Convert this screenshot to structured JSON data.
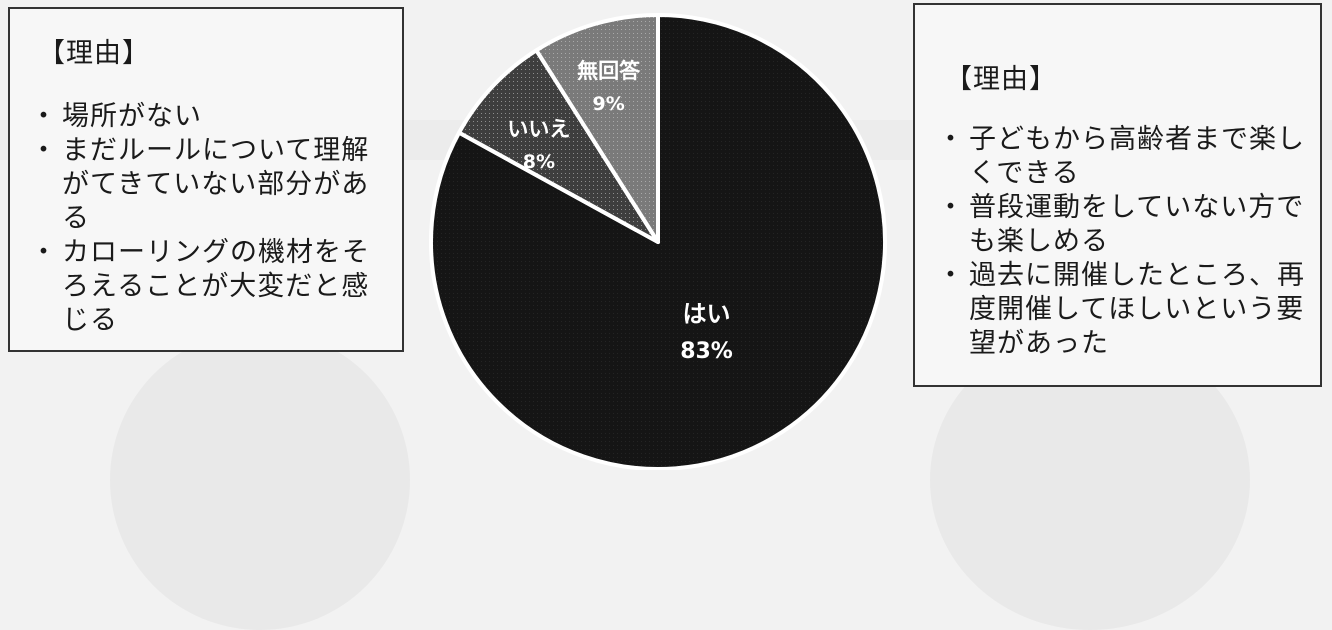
{
  "chart_data": {
    "type": "pie",
    "title": "",
    "slices": [
      {
        "label": "はい",
        "percent": 83,
        "percent_label": "83%",
        "color": "#151515"
      },
      {
        "label": "いいえ",
        "percent": 8,
        "percent_label": "8%",
        "color": "#3e3e3e"
      },
      {
        "label": "無回答",
        "percent": 9,
        "percent_label": "9%",
        "color": "#7a7a7a"
      }
    ]
  },
  "callouts": {
    "left": {
      "title": "【理由】",
      "items": [
        "場所がない",
        "まだルールについて理解がてきていない部分がある",
        "カローリングの機材をそろえることが大変だと感じる"
      ],
      "lines": [
        [
          "場所がない"
        ],
        [
          "まだルールについて理解",
          "がてきていない部分があ",
          "る"
        ],
        [
          "カローリングの機材をそ",
          "ろえることが大変だと感",
          "じる"
        ]
      ]
    },
    "right": {
      "title": "【理由】",
      "items": [
        "子どもから高齢者まで楽しくできる",
        "普段運動をしていない方でも楽しめる",
        "過去に開催したところ、再度開催してほしいという要望があった"
      ],
      "lines": [
        [
          "子どもから高齢者まで楽し",
          "くできる"
        ],
        [
          "普段運動をしていない方で",
          "も楽しめる"
        ],
        [
          "過去に開催したところ、再",
          "度開催してほしいという要",
          "望があった"
        ]
      ]
    }
  }
}
